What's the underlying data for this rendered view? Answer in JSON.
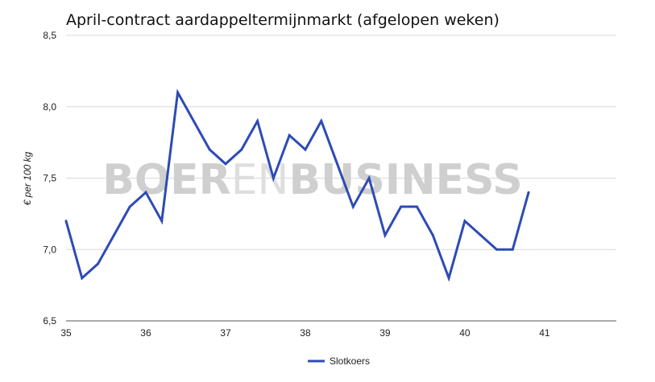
{
  "chart_data": {
    "type": "line",
    "title": "April-contract aardappeltermijnmarkt (afgelopen weken)",
    "ylabel": "€ per 100 kg",
    "xlabel": "",
    "ylim": [
      6.5,
      8.5
    ],
    "xlim": [
      35,
      41.9
    ],
    "yticks": [
      "6,5",
      "7,0",
      "7,5",
      "8,0",
      "8,5"
    ],
    "xticks": [
      "35",
      "36",
      "37",
      "38",
      "39",
      "40",
      "41"
    ],
    "grid": true,
    "legend_position": "bottom-center",
    "series": [
      {
        "name": "Slotkoers",
        "color": "#2e4bb5",
        "x": [
          35.0,
          35.2,
          35.4,
          35.6,
          35.8,
          36.0,
          36.2,
          36.4,
          36.6,
          36.8,
          37.0,
          37.2,
          37.4,
          37.6,
          37.8,
          38.0,
          38.2,
          38.4,
          38.6,
          38.8,
          39.0,
          39.2,
          39.4,
          39.6,
          39.8,
          40.0,
          40.2,
          40.4,
          40.6,
          40.8
        ],
        "values": [
          7.2,
          6.8,
          6.9,
          7.1,
          7.3,
          7.4,
          7.2,
          8.1,
          7.9,
          7.7,
          7.6,
          7.7,
          7.9,
          7.5,
          7.8,
          7.7,
          7.9,
          7.6,
          7.3,
          7.5,
          7.1,
          7.3,
          7.3,
          7.1,
          6.8,
          7.2,
          7.1,
          7.0,
          7.0,
          7.4
        ]
      }
    ]
  },
  "watermark": {
    "part1": "BOER",
    "part2": "EN",
    "part3": "BUSINESS"
  }
}
